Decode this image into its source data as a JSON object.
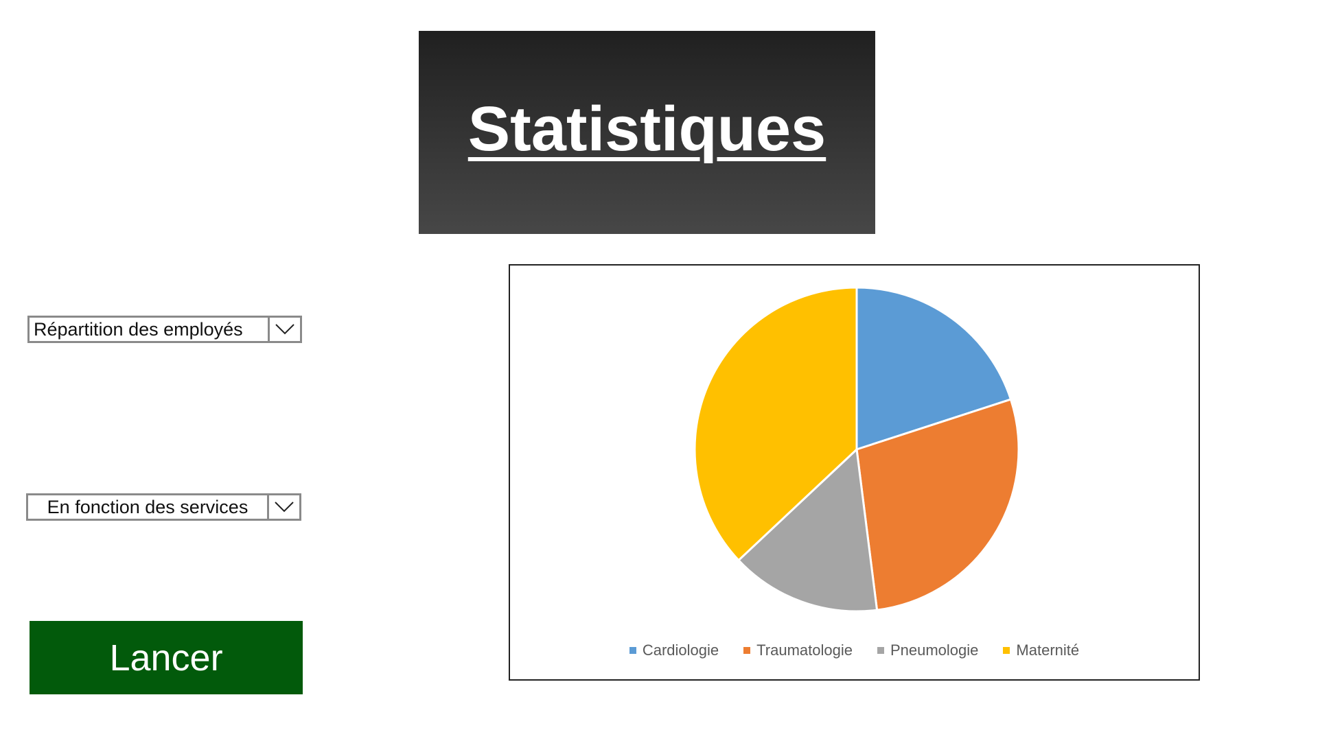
{
  "header": {
    "title": "Statistiques"
  },
  "controls": {
    "dropdown_stat": {
      "selected": "Répartition des employés"
    },
    "dropdown_group": {
      "selected": "En fonction des services"
    },
    "launch_label": "Lancer"
  },
  "colors": {
    "banner_top": "#202020",
    "banner_bottom": "#474747",
    "launch_bg": "#025a0b",
    "dropdown_border": "#8a8a8a"
  },
  "chart_data": {
    "type": "pie",
    "title": "",
    "categories": [
      "Cardiologie",
      "Traumatologie",
      "Pneumologie",
      "Maternité"
    ],
    "values": [
      20,
      28,
      15,
      37
    ],
    "colors": [
      "#5b9bd5",
      "#ed7d31",
      "#a5a5a5",
      "#ffc000"
    ],
    "legend_position": "bottom"
  }
}
